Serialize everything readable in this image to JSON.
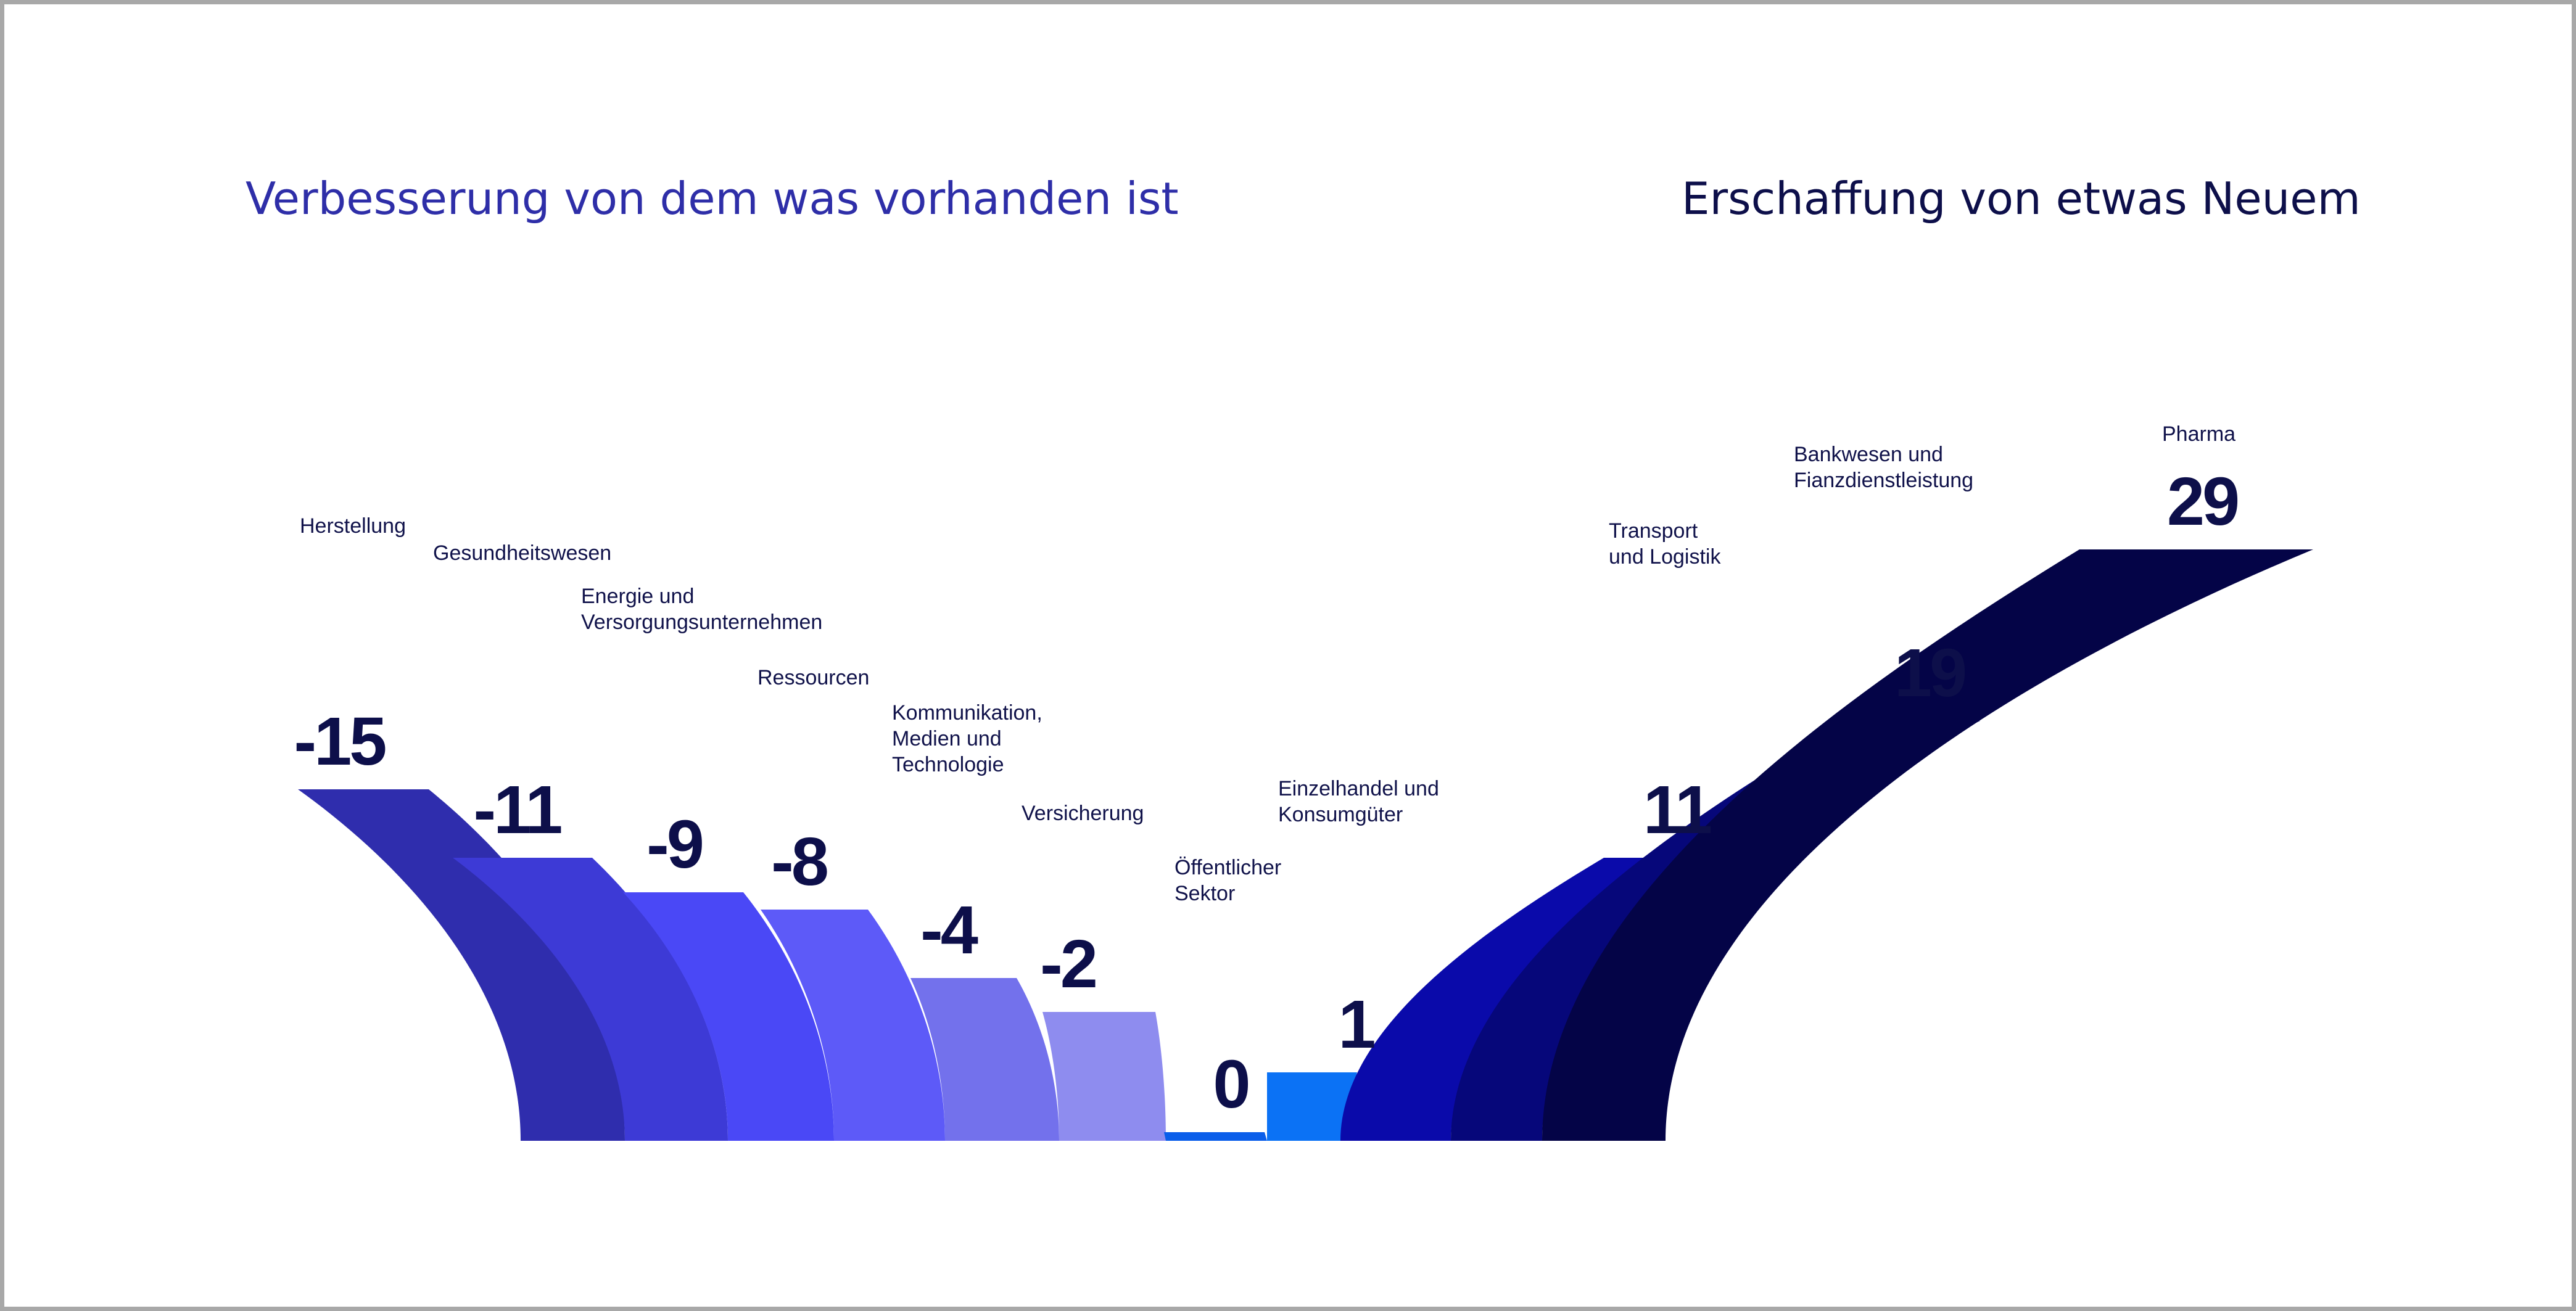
{
  "headings": {
    "left": "Verbesserung von dem was vorhanden ist",
    "right": "Erschaffung von etwas Neuem"
  },
  "chart_data": {
    "type": "bar",
    "categories": [
      [
        "Herstellung"
      ],
      [
        "Gesundheitswesen"
      ],
      [
        "Energie und",
        "Versorgungsunternehmen"
      ],
      [
        "Ressourcen"
      ],
      [
        "Kommunikation,",
        "Medien und",
        "Technologie"
      ],
      [
        "Versicherung"
      ],
      [
        "Öffentlicher",
        "Sektor"
      ],
      [
        "Einzelhandel und",
        "Konsumgüter"
      ],
      [
        "Transport",
        "und Logistik"
      ],
      [
        "Bankwesen und",
        "Fianzdienstleistung"
      ],
      [
        "Pharma"
      ]
    ],
    "values": [
      -15,
      -11,
      -9,
      -8,
      -4,
      -2,
      0,
      1,
      11,
      19,
      29
    ],
    "value_labels": [
      "-15",
      "-11",
      "-9",
      "-8",
      "-4",
      "-2",
      "0",
      "1",
      "11",
      "19",
      "29"
    ],
    "colors": [
      "#2f2dad",
      "#3d3ad6",
      "#4a48f6",
      "#5d5af8",
      "#7371ec",
      "#8e8cef",
      "#0a5eea",
      "#0b72f5",
      "#0a0aaa",
      "#06077a",
      "#040447"
    ],
    "grid": false,
    "legend": "none"
  }
}
